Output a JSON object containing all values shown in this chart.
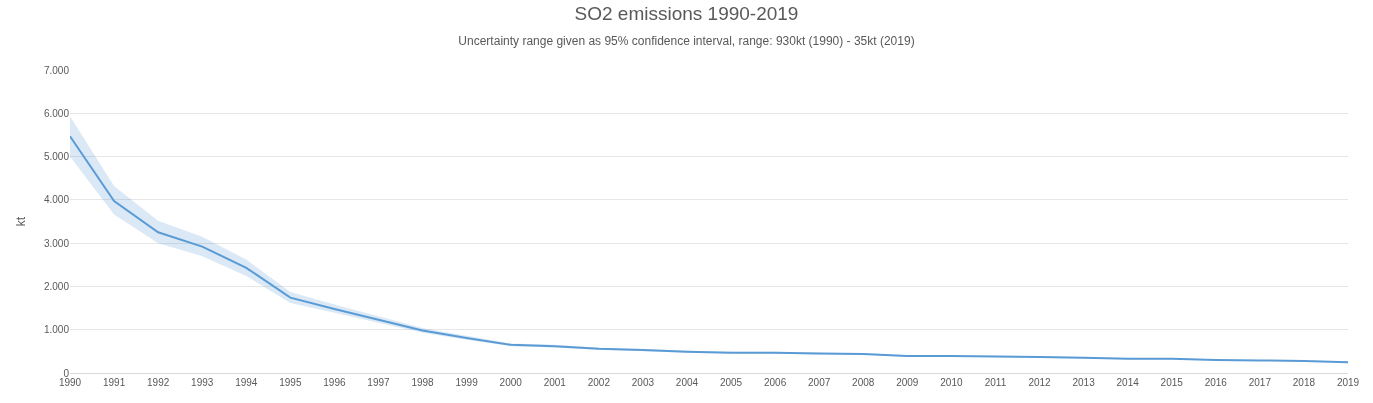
{
  "chart_data": {
    "type": "line",
    "title": "SO2 emissions 1990-2019",
    "subtitle": "Uncertainty range given as 95% confidence interval, range: 930kt (1990) - 35kt (2019)",
    "ylabel": "kt",
    "categories": [
      "1990",
      "1991",
      "1992",
      "1993",
      "1994",
      "1995",
      "1996",
      "1997",
      "1998",
      "1999",
      "2000",
      "2001",
      "2002",
      "2003",
      "2004",
      "2005",
      "2006",
      "2007",
      "2008",
      "2009",
      "2010",
      "2011",
      "2012",
      "2013",
      "2014",
      "2015",
      "2016",
      "2017",
      "2018",
      "2019"
    ],
    "series": [
      {
        "color": "#5b9bd5",
        "values": [
          5470,
          3970,
          3250,
          2920,
          2430,
          1740,
          1480,
          1230,
          980,
          810,
          650,
          620,
          560,
          530,
          490,
          470,
          470,
          450,
          440,
          390,
          390,
          380,
          370,
          350,
          330,
          330,
          300,
          290,
          280,
          250
        ],
        "lower": [
          5000,
          3660,
          3000,
          2700,
          2240,
          1620,
          1390,
          1160,
          930,
          770,
          620,
          590,
          535,
          505,
          467,
          448,
          449,
          430,
          421,
          372,
          373,
          363,
          354,
          335,
          316,
          316,
          287,
          278,
          268,
          233
        ],
        "upper": [
          5930,
          4320,
          3520,
          3150,
          2620,
          1870,
          1580,
          1310,
          1040,
          860,
          680,
          650,
          585,
          555,
          513,
          492,
          491,
          470,
          459,
          408,
          407,
          397,
          386,
          365,
          344,
          344,
          313,
          302,
          292,
          268
        ]
      }
    ],
    "ylim": [
      0,
      7000
    ],
    "yticks": [
      {
        "value": 0,
        "label": "0"
      },
      {
        "value": 1000,
        "label": "1.000"
      },
      {
        "value": 2000,
        "label": "2.000"
      },
      {
        "value": 3000,
        "label": "3.000"
      },
      {
        "value": 4000,
        "label": "4.000"
      },
      {
        "value": 5000,
        "label": "5.000"
      },
      {
        "value": 6000,
        "label": "6.000"
      },
      {
        "value": 7000,
        "label": "7.000"
      }
    ],
    "grid": "y",
    "marker": "none",
    "line_style": "solid"
  }
}
